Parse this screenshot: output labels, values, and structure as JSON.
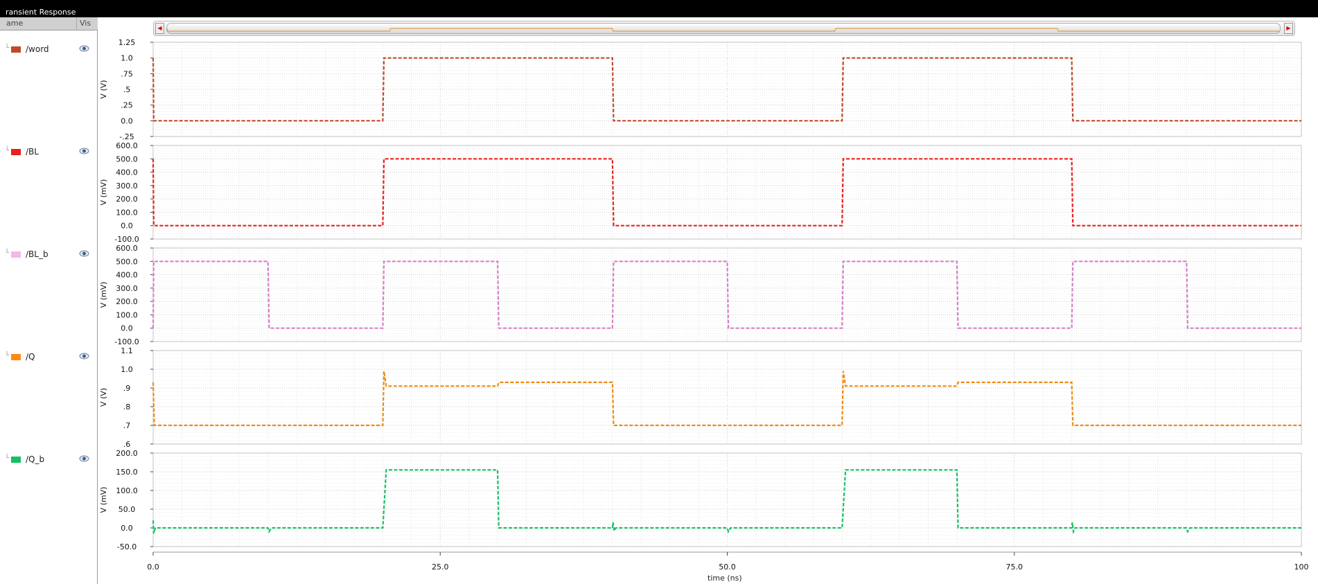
{
  "window": {
    "title": "ransient Response"
  },
  "panel": {
    "header_name": "ame",
    "header_vis": "Vis",
    "signals": [
      {
        "name": "/word",
        "color": "#c0492b"
      },
      {
        "name": "/BL",
        "color": "#e8201e"
      },
      {
        "name": "/BL_b",
        "color": "#f7b6e8"
      },
      {
        "name": "/Q",
        "color": "#ff8a10"
      },
      {
        "name": "/Q_b",
        "color": "#16c163"
      }
    ],
    "vis_icon": "eye-icon"
  },
  "scrollbar": {
    "left_icon": "arrow-left-icon",
    "right_icon": "arrow-right-icon"
  },
  "chart_data": {
    "type": "line",
    "xlabel": "time (ns)",
    "xlim": [
      0,
      100
    ],
    "xticks": [
      0,
      25,
      50,
      75,
      100
    ],
    "xtick_labels": [
      "0.0",
      "25.0",
      "50.0",
      "75.0",
      "100"
    ],
    "grid": true,
    "panels": [
      {
        "signal": "/word",
        "color": "#c0492b",
        "ylabel": "V (V)",
        "ylim": [
          -0.25,
          1.25
        ],
        "yticks": [
          -0.25,
          0,
          0.25,
          0.5,
          0.75,
          1.0,
          1.25
        ],
        "ytick_labels": [
          "-.25",
          "0.0",
          ".25",
          ".5",
          ".75",
          "1.0",
          "1.25"
        ],
        "points": [
          [
            0,
            1
          ],
          [
            0.05,
            0
          ],
          [
            20,
            0
          ],
          [
            20.1,
            1
          ],
          [
            40,
            1
          ],
          [
            40.1,
            0
          ],
          [
            60,
            0
          ],
          [
            60.1,
            1
          ],
          [
            80,
            1
          ],
          [
            80.1,
            0
          ],
          [
            100,
            0
          ]
        ]
      },
      {
        "signal": "/BL",
        "color": "#e8201e",
        "ylabel": "V (mV)",
        "ylim": [
          -100,
          600
        ],
        "yticks": [
          -100,
          0,
          100,
          200,
          300,
          400,
          500,
          600
        ],
        "ytick_labels": [
          "-100.0",
          "0.0",
          "100.0",
          "200.0",
          "300.0",
          "400.0",
          "500.0",
          "600.0"
        ],
        "points": [
          [
            0,
            500
          ],
          [
            0.05,
            0
          ],
          [
            20,
            0
          ],
          [
            20.1,
            500
          ],
          [
            40,
            500
          ],
          [
            40.1,
            0
          ],
          [
            60,
            0
          ],
          [
            60.1,
            500
          ],
          [
            80,
            500
          ],
          [
            80.1,
            0
          ],
          [
            100,
            0
          ]
        ]
      },
      {
        "signal": "/BL_b",
        "color": "#d67fc8",
        "ylabel": "V (mV)",
        "ylim": [
          -100,
          600
        ],
        "yticks": [
          -100,
          0,
          100,
          200,
          300,
          400,
          500,
          600
        ],
        "ytick_labels": [
          "-100.0",
          "0.0",
          "100.0",
          "200.0",
          "300.0",
          "400.0",
          "500.0",
          "600.0"
        ],
        "points": [
          [
            0,
            0
          ],
          [
            0.05,
            500
          ],
          [
            10,
            500
          ],
          [
            10.1,
            0
          ],
          [
            20,
            0
          ],
          [
            20.1,
            500
          ],
          [
            30,
            500
          ],
          [
            30.1,
            0
          ],
          [
            40,
            0
          ],
          [
            40.1,
            500
          ],
          [
            50,
            500
          ],
          [
            50.1,
            0
          ],
          [
            60,
            0
          ],
          [
            60.1,
            500
          ],
          [
            70,
            500
          ],
          [
            70.1,
            0
          ],
          [
            80,
            0
          ],
          [
            80.1,
            500
          ],
          [
            90,
            500
          ],
          [
            90.1,
            0
          ],
          [
            100,
            0
          ]
        ]
      },
      {
        "signal": "/Q",
        "color": "#f08a10",
        "ylabel": "V (V)",
        "ylim": [
          0.6,
          1.1
        ],
        "yticks": [
          0.6,
          0.7,
          0.8,
          0.9,
          1.0,
          1.1
        ],
        "ytick_labels": [
          ".6",
          ".7",
          ".8",
          ".9",
          "1.0",
          "1.1"
        ],
        "points": [
          [
            0,
            0.93
          ],
          [
            0.1,
            0.7
          ],
          [
            20,
            0.7
          ],
          [
            20.1,
            0.99
          ],
          [
            20.3,
            0.91
          ],
          [
            30,
            0.91
          ],
          [
            30.1,
            0.93
          ],
          [
            40,
            0.93
          ],
          [
            40.1,
            0.7
          ],
          [
            60,
            0.7
          ],
          [
            60.1,
            0.99
          ],
          [
            60.3,
            0.91
          ],
          [
            70,
            0.91
          ],
          [
            70.1,
            0.93
          ],
          [
            80,
            0.93
          ],
          [
            80.1,
            0.7
          ],
          [
            100,
            0.7
          ]
        ]
      },
      {
        "signal": "/Q_b",
        "color": "#16c163",
        "ylabel": "V (mV)",
        "ylim": [
          -50,
          200
        ],
        "yticks": [
          -50,
          0,
          50,
          100,
          150,
          200
        ],
        "ytick_labels": [
          "-50.0",
          "0.0",
          "50.0",
          "100.0",
          "150.0",
          "200.0"
        ],
        "points": [
          [
            0,
            20
          ],
          [
            0.05,
            -15
          ],
          [
            0.2,
            0
          ],
          [
            10,
            0
          ],
          [
            10.1,
            -10
          ],
          [
            10.3,
            0
          ],
          [
            20,
            0
          ],
          [
            20.3,
            155
          ],
          [
            30,
            155
          ],
          [
            30.1,
            0
          ],
          [
            40,
            0
          ],
          [
            40.05,
            15
          ],
          [
            40.15,
            -8
          ],
          [
            40.3,
            0
          ],
          [
            50,
            0
          ],
          [
            50.1,
            -10
          ],
          [
            50.3,
            0
          ],
          [
            60,
            0
          ],
          [
            60.3,
            155
          ],
          [
            70,
            155
          ],
          [
            70.1,
            0
          ],
          [
            80,
            0
          ],
          [
            80.05,
            15
          ],
          [
            80.15,
            -10
          ],
          [
            80.3,
            0
          ],
          [
            90,
            0
          ],
          [
            90.1,
            -10
          ],
          [
            90.3,
            0
          ],
          [
            100,
            0
          ]
        ]
      }
    ]
  }
}
